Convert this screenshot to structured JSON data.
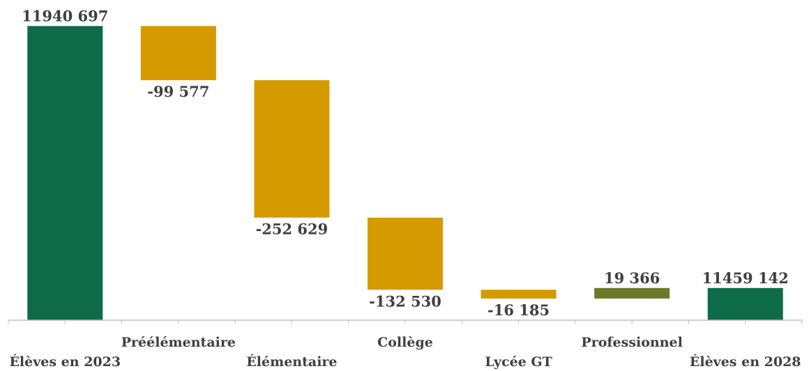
{
  "chart_data": {
    "type": "waterfall",
    "categories": [
      "Élèves en 2023",
      "Préélémentaire",
      "Élémentaire",
      "Collège",
      "Lycée GT",
      "Professionnel",
      "Élèves en 2028"
    ],
    "values": [
      11940697,
      -99577,
      -252629,
      -132530,
      -16185,
      19366,
      11459142
    ],
    "kinds": [
      "total",
      "delta",
      "delta",
      "delta",
      "delta",
      "delta",
      "total"
    ],
    "value_labels": [
      "11940 697",
      "-99 577",
      "-252 629",
      "-132 530",
      "-16 185",
      "19 366",
      "11459 142"
    ],
    "ylim": [
      11400000,
      11945000
    ],
    "colors": {
      "total": "#0e6b47",
      "decrease": "#d59a00",
      "increase": "#6b7a29"
    },
    "grid": false,
    "legend": "none"
  }
}
